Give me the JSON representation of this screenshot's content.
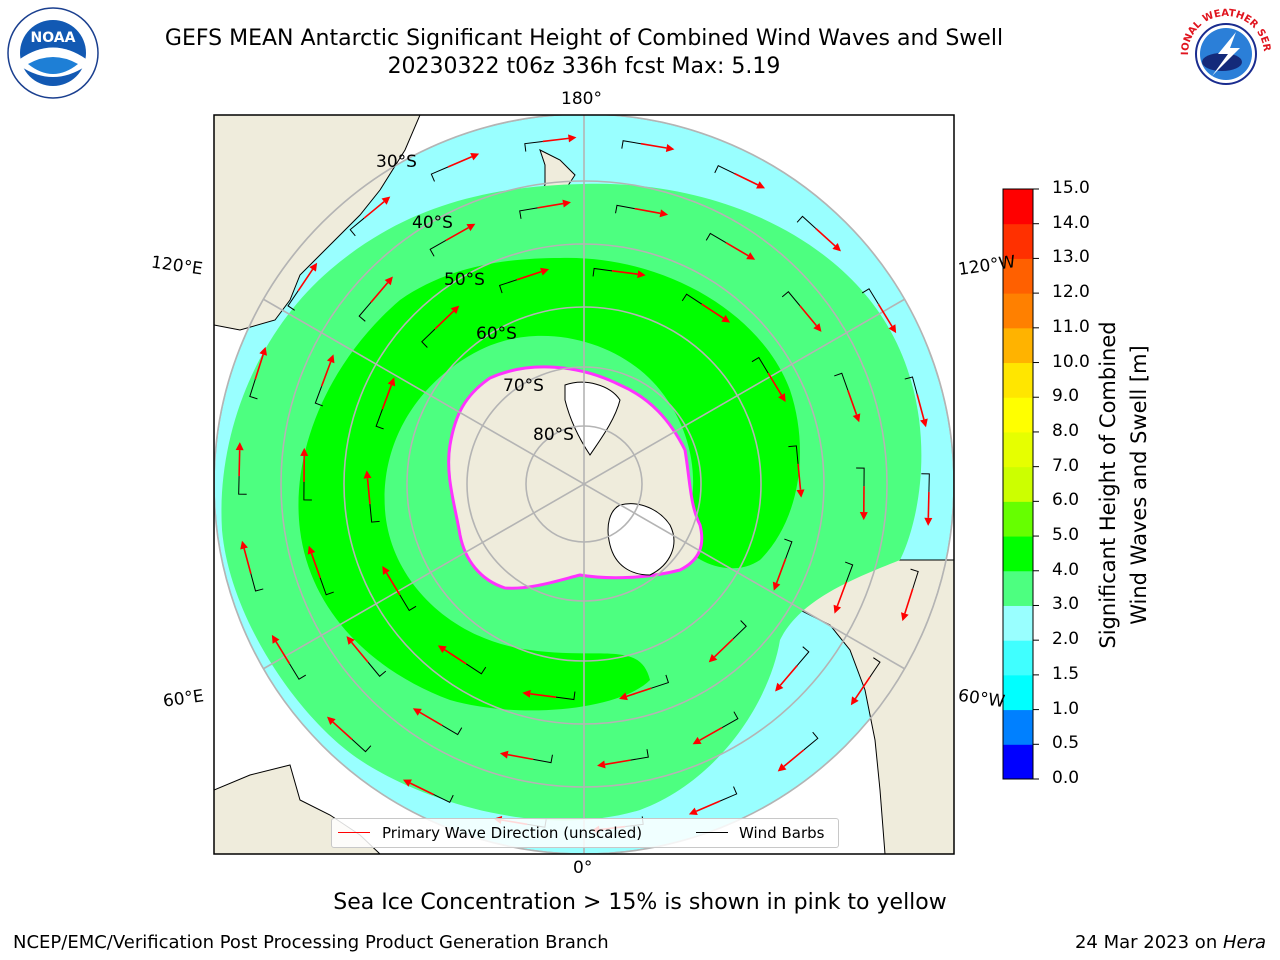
{
  "header": {
    "title_line1": "GEFS MEAN Antarctic Significant Height of Combined Wind Waves and Swell",
    "title_line2": "20230322 t06z 336h fcst   Max: 5.19"
  },
  "logos": {
    "left": "NOAA",
    "right": "NATIONAL WEATHER SERVICE"
  },
  "map": {
    "projection": "south-polar-stereographic",
    "colors": {
      "land": "#efecdc",
      "ice_land": "#ffffff",
      "ice_edge": "#ff33ff",
      "grid": "#b4b4b4"
    },
    "lat_labels": [
      "30°S",
      "40°S",
      "50°S",
      "60°S",
      "70°S",
      "80°S"
    ],
    "lon_labels": {
      "top": "180°",
      "bottom": "0°",
      "upper_left": "120°E",
      "upper_right": "120°W",
      "lower_left": "60°E",
      "lower_right": "60°W"
    }
  },
  "legend": {
    "wave_label": "Primary Wave Direction (unscaled)",
    "wave_color": "#ff0000",
    "wind_label": "Wind Barbs",
    "wind_color": "#000000"
  },
  "colorbar": {
    "label_line1": "Significant Height of Combined",
    "label_line2": "Wind Waves and Swell [m]",
    "ticks": [
      "15.0",
      "14.0",
      "13.0",
      "12.0",
      "11.0",
      "10.0",
      "9.0",
      "8.0",
      "7.0",
      "6.0",
      "5.0",
      "4.0",
      "3.0",
      "2.0",
      "1.5",
      "1.0",
      "0.5",
      "0.0"
    ],
    "colors": [
      "#0000ff",
      "#0080ff",
      "#00ffff",
      "#40ffff",
      "#99ffff",
      "#4dff80",
      "#00ff00",
      "#66ff00",
      "#ccff00",
      "#e6ff00",
      "#ffff00",
      "#ffe600",
      "#ffb300",
      "#ff8000",
      "#ff6000",
      "#ff3000",
      "#ff0000"
    ]
  },
  "caption": "Sea Ice Concentration > 15% is shown in pink to yellow",
  "footer": {
    "left": "NCEP/EMC/Verification Post Processing Product Generation Branch",
    "date": "24 Mar 2023 on ",
    "machine": "Hera"
  }
}
